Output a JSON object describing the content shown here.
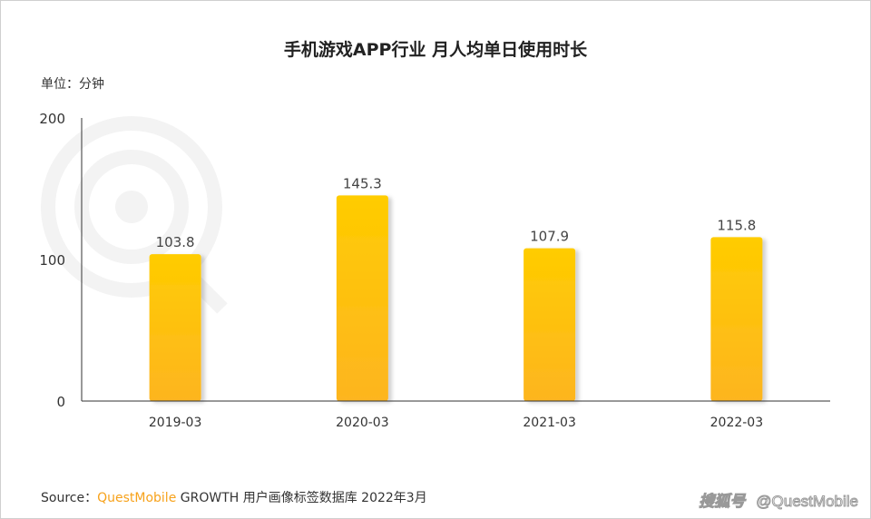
{
  "title": "手机游戏APP行业 月人均单日使用时长",
  "unit_label": "单位：分钟",
  "source": {
    "prefix": "Source：",
    "brand": "QuestMobile",
    "text": "GROWTH 用户画像标签数据库 2022年3月"
  },
  "watermark": {
    "background_logo": "QUEST MOBILE",
    "sohu": "搜狐号",
    "credit": "@QuestMobile"
  },
  "colors": {
    "bar_top": "#ffcc00",
    "bar_bottom": "#fdb520",
    "brand": "#f7a21b"
  },
  "chart_data": {
    "type": "bar",
    "title": "手机游戏APP行业 月人均单日使用时长",
    "ylabel": "单位：分钟",
    "categories": [
      "2019-03",
      "2020-03",
      "2021-03",
      "2022-03"
    ],
    "values": [
      103.8,
      145.3,
      107.9,
      115.8
    ],
    "value_labels": [
      "103.8",
      "145.3",
      "107.9",
      "115.8"
    ],
    "ylim": [
      0,
      200
    ],
    "yticks": [
      "0",
      "100",
      "200"
    ],
    "grid": false
  }
}
